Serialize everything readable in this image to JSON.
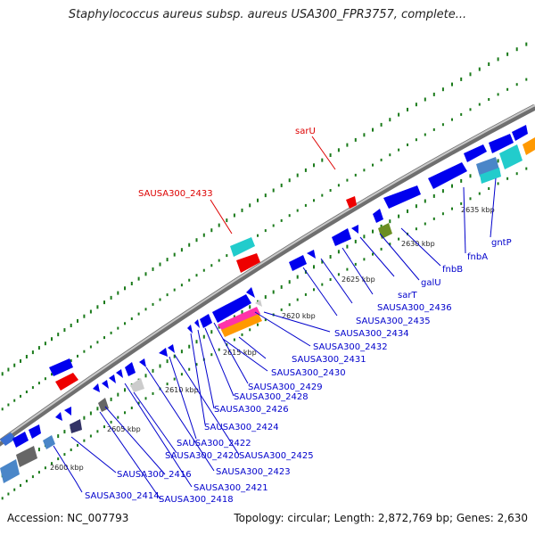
{
  "header": {
    "title": "Staphylococcus aureus subsp. aureus USA300_FPR3757, complete..."
  },
  "footer": {
    "accession": "Accession: NC_007793",
    "summary": "Topology: circular; Length: 2,872,769 bp; Genes: 2,630"
  },
  "colors": {
    "backbone": "#8a8a8a",
    "forward_gene": "#0000ee",
    "reverse_gene": "#0000ee",
    "rna_gene": "#ee0000",
    "label_blue": "#0000cc",
    "label_red": "#dd0000",
    "gc_dots": "#1a7a1a"
  },
  "scale_ticks": [
    "2600 kbp",
    "2605 kbp",
    "2610 kbp",
    "2615 kbp",
    "2620 kbp",
    "2625 kbp",
    "2630 kbp",
    "2635 kbp"
  ],
  "gene_labels": {
    "red": [
      "sarU",
      "SAUSA300_2433"
    ],
    "blue": [
      "SAUSA300_2414",
      "SAUSA300_2418",
      "SAUSA300_2416",
      "SAUSA300_2421",
      "SAUSA300_2420",
      "SAUSA300_2423",
      "SAUSA300_2422",
      "SAUSA300_2425",
      "SAUSA300_2424",
      "SAUSA300_2426",
      "SAUSA300_2428",
      "SAUSA300_2429",
      "SAUSA300_2430",
      "SAUSA300_2431",
      "SAUSA300_2432",
      "SAUSA300_2434",
      "SAUSA300_2435",
      "SAUSA300_2436",
      "sarT",
      "galU",
      "fnbB",
      "fnbA",
      "gntP"
    ]
  }
}
